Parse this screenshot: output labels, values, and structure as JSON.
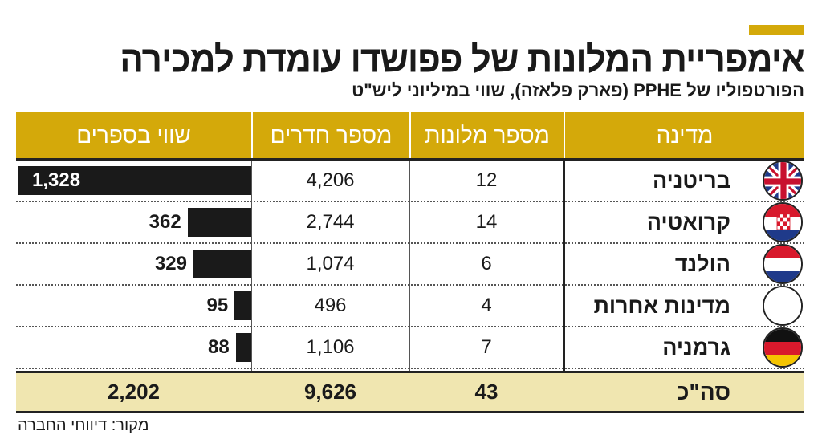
{
  "title": "אימפריית המלונות של פפושדו עומדת למכירה",
  "subtitle": "הפורטפוליו של PPHE (פארק פלאזה), שווי במיליוני ליש\"ט",
  "source": "מקור: דיווחי החברה",
  "colors": {
    "accent": "#d4a90a",
    "total_bg": "#f0e6b0",
    "bar": "#1a1a1a"
  },
  "chart_data": {
    "type": "table",
    "columns": [
      "מדינה",
      "מספר מלונות",
      "מספר חדרים",
      "שווי בספרים"
    ],
    "rows": [
      {
        "country": "בריטניה",
        "flag": "uk-flag-icon",
        "hotels": "12",
        "rooms": "4,206",
        "value": 1328,
        "value_label": "1,328"
      },
      {
        "country": "קרואטיה",
        "flag": "croatia-flag-icon",
        "hotels": "14",
        "rooms": "2,744",
        "value": 362,
        "value_label": "362"
      },
      {
        "country": "הולנד",
        "flag": "netherlands-flag-icon",
        "hotels": "6",
        "rooms": "1,074",
        "value": 329,
        "value_label": "329"
      },
      {
        "country": "מדינות אחרות",
        "flag": "blank-flag-icon",
        "hotels": "4",
        "rooms": "496",
        "value": 95,
        "value_label": "95"
      },
      {
        "country": "גרמניה",
        "flag": "germany-flag-icon",
        "hotels": "7",
        "rooms": "1,106",
        "value": 88,
        "value_label": "88"
      }
    ],
    "total": {
      "label": "סה\"כ",
      "hotels": "43",
      "rooms": "9,626",
      "value": "2,202"
    }
  }
}
